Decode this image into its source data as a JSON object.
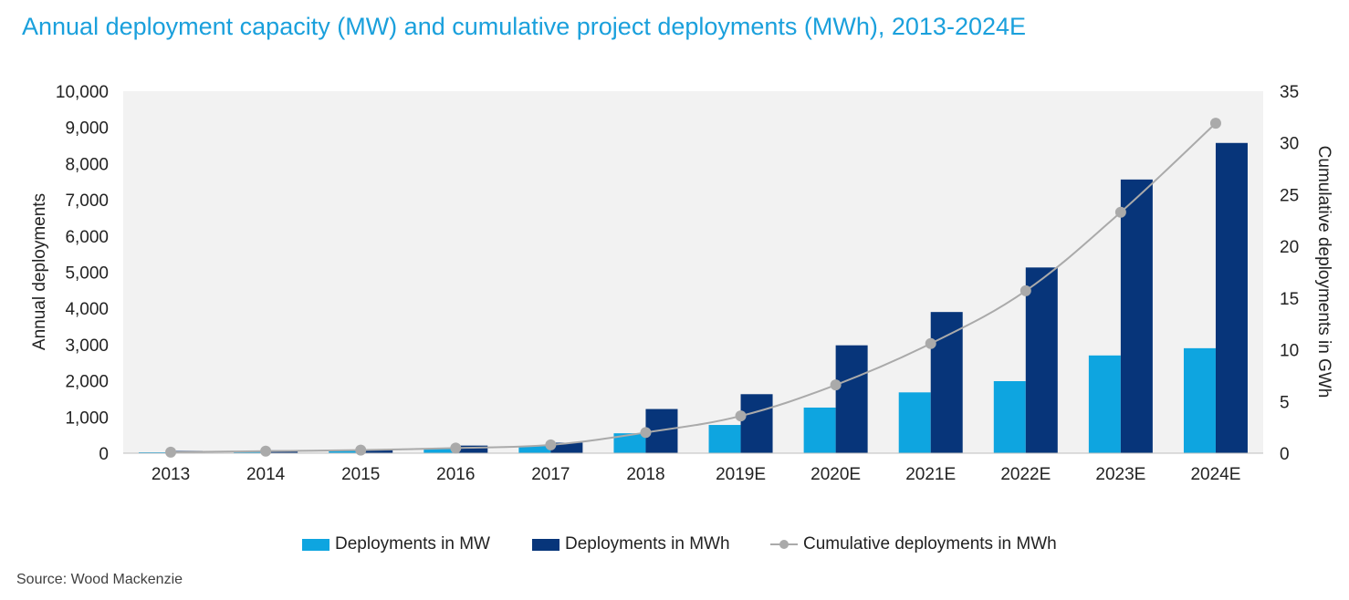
{
  "chart_data": {
    "type": "bar",
    "title": "Annual deployment capacity (MW) and cumulative project deployments (MWh), 2013-2024E",
    "categories": [
      "2013",
      "2014",
      "2015",
      "2016",
      "2017",
      "2018",
      "2019E",
      "2020E",
      "2021E",
      "2022E",
      "2023E",
      "2024E"
    ],
    "series": [
      {
        "name": "Deployments in MW",
        "kind": "bar",
        "axis": "left",
        "color": "#0ea5e0",
        "values": [
          25,
          55,
          85,
          120,
          200,
          550,
          780,
          1260,
          1680,
          1990,
          2700,
          2900
        ]
      },
      {
        "name": "Deployments in MWh",
        "kind": "bar",
        "axis": "left",
        "color": "#07357a",
        "values": [
          65,
          80,
          110,
          210,
          290,
          1220,
          1630,
          2980,
          3900,
          5130,
          7560,
          8570
        ]
      },
      {
        "name": "Cumulative deployments in MWh",
        "kind": "line",
        "axis": "right",
        "color": "#aaaaaa",
        "values": [
          0.1,
          0.2,
          0.3,
          0.5,
          0.8,
          2.0,
          3.6,
          6.6,
          10.6,
          15.7,
          23.3,
          31.9
        ]
      }
    ],
    "ylabel": "Annual deployments",
    "y2label": "Cumulative deployments in GWh",
    "ylim": [
      0,
      10000
    ],
    "y2lim": [
      0,
      35
    ],
    "yticks": [
      "0",
      "1,000",
      "2,000",
      "3,000",
      "4,000",
      "5,000",
      "6,000",
      "7,000",
      "8,000",
      "9,000",
      "10,000"
    ],
    "y2ticks": [
      "0",
      "5",
      "10",
      "15",
      "20",
      "25",
      "30",
      "35"
    ],
    "grid": false,
    "legend_position": "bottom",
    "plot_background": "#f2f2f2"
  },
  "source": "Source: Wood Mackenzie"
}
